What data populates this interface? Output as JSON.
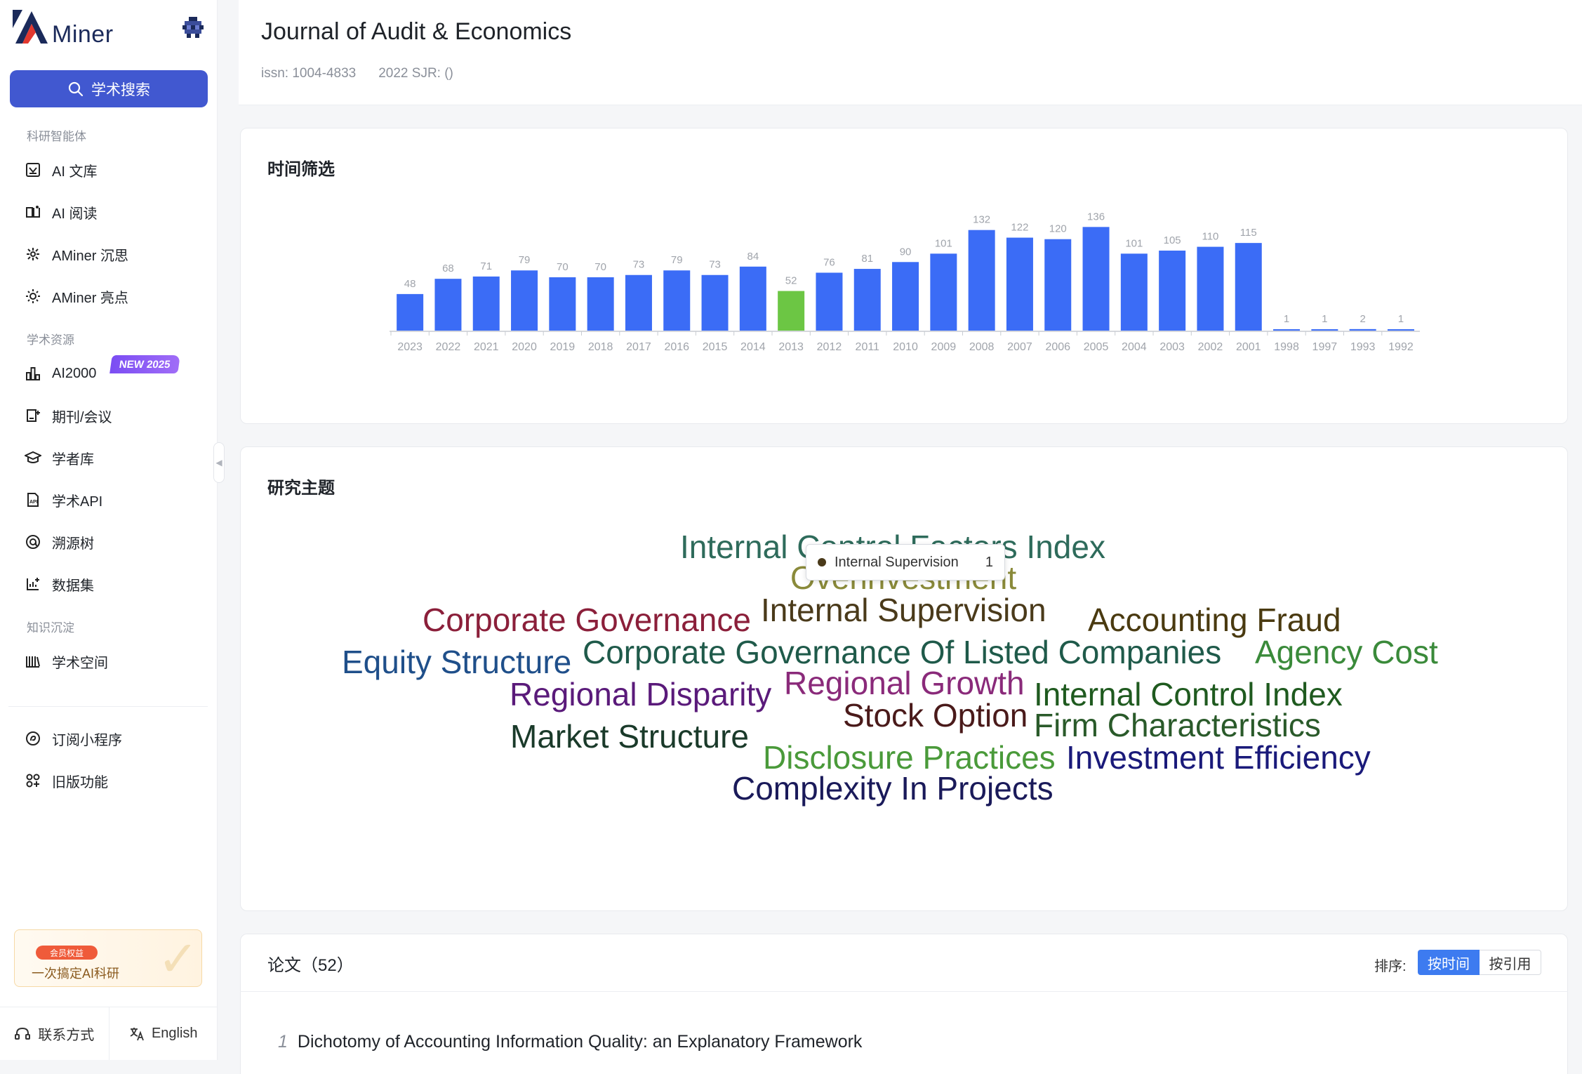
{
  "app": {
    "logo_text": "Miner"
  },
  "sidebar": {
    "search_label": "学术搜索",
    "sections": [
      {
        "label": "科研智能体"
      },
      {
        "label": "学术资源"
      },
      {
        "label": "知识沉淀"
      }
    ],
    "items": [
      {
        "label": "AI 文库",
        "icon": "ai-library-icon"
      },
      {
        "label": "AI 阅读",
        "icon": "ai-reading-icon"
      },
      {
        "label": "AMiner 沉思",
        "icon": "deep-think-icon"
      },
      {
        "label": "AMiner 亮点",
        "icon": "highlight-icon"
      },
      {
        "label": "AI2000",
        "icon": "ranking-icon",
        "badge": "NEW 2025"
      },
      {
        "label": "期刊/会议",
        "icon": "journal-icon"
      },
      {
        "label": "学者库",
        "icon": "scholar-icon"
      },
      {
        "label": "学术API",
        "icon": "api-icon"
      },
      {
        "label": "溯源树",
        "icon": "trace-tree-icon"
      },
      {
        "label": "数据集",
        "icon": "dataset-icon"
      },
      {
        "label": "学术空间",
        "icon": "academic-space-icon"
      },
      {
        "label": "订阅小程序",
        "icon": "subscribe-icon"
      },
      {
        "label": "旧版功能",
        "icon": "legacy-icon"
      }
    ],
    "promo": {
      "tag": "会员权益",
      "text": "一次搞定AI科研"
    },
    "bottom": {
      "contact": "联系方式",
      "language": "English"
    }
  },
  "journal": {
    "title": "Journal of Audit & Economics",
    "issn": "issn: 1004-4833",
    "sjr": "2022 SJR: ()"
  },
  "time_filter": {
    "title": "时间筛选",
    "colors": {
      "bar": "#3b6cf6",
      "selected": "#6cc644",
      "label": "#a0a4ab"
    }
  },
  "chart_data": {
    "type": "bar",
    "categories": [
      "2023",
      "2022",
      "2021",
      "2020",
      "2019",
      "2018",
      "2017",
      "2016",
      "2015",
      "2014",
      "2013",
      "2012",
      "2011",
      "2010",
      "2009",
      "2008",
      "2007",
      "2006",
      "2005",
      "2004",
      "2003",
      "2002",
      "2001",
      "1998",
      "1997",
      "1993",
      "1992"
    ],
    "values": [
      48,
      68,
      71,
      79,
      70,
      70,
      73,
      79,
      73,
      84,
      52,
      76,
      81,
      90,
      101,
      132,
      122,
      120,
      136,
      101,
      105,
      110,
      115,
      1,
      1,
      2,
      1
    ],
    "selected_category": "2013",
    "title": "",
    "xlabel": "",
    "ylabel": ""
  },
  "topics": {
    "title": "研究主题",
    "words": [
      {
        "text": "Internal Control Factors Index",
        "color": "#2e6b5b"
      },
      {
        "text": "Overinvestment",
        "color": "#8a8a3a"
      },
      {
        "text": "Corporate Governance",
        "color": "#8b1f3a"
      },
      {
        "text": "Internal Supervision",
        "color": "#4a3a1a"
      },
      {
        "text": "Accounting Fraud",
        "color": "#4a3a10"
      },
      {
        "text": "Equity Structure",
        "color": "#1f4f8a"
      },
      {
        "text": "Corporate Governance Of Listed Companies",
        "color": "#1f5a4a"
      },
      {
        "text": "Agency Cost",
        "color": "#3a8a3a"
      },
      {
        "text": "Regional Disparity",
        "color": "#5a1a7a"
      },
      {
        "text": "Regional Growth",
        "color": "#8a2a7a"
      },
      {
        "text": "Internal Control Index",
        "color": "#1f5a1f"
      },
      {
        "text": "Stock Option",
        "color": "#4a1a1a"
      },
      {
        "text": "Firm Characteristics",
        "color": "#2a5a2a"
      },
      {
        "text": "Market Structure",
        "color": "#1a3a2a"
      },
      {
        "text": "Disclosure Practices",
        "color": "#4a9a3a"
      },
      {
        "text": "Investment Efficiency",
        "color": "#1a1a7a"
      },
      {
        "text": "Complexity In Projects",
        "color": "#1a1a5a"
      }
    ],
    "tooltip": {
      "label": "Internal Supervision",
      "value": "1"
    }
  },
  "papers": {
    "title": "论文（52）",
    "sort_label": "排序:",
    "sort_by_time": "按时间",
    "sort_by_citation": "按引用",
    "list": [
      {
        "index": "1",
        "title": "Dichotomy of Accounting Information Quality: an Explanatory Framework"
      }
    ]
  }
}
